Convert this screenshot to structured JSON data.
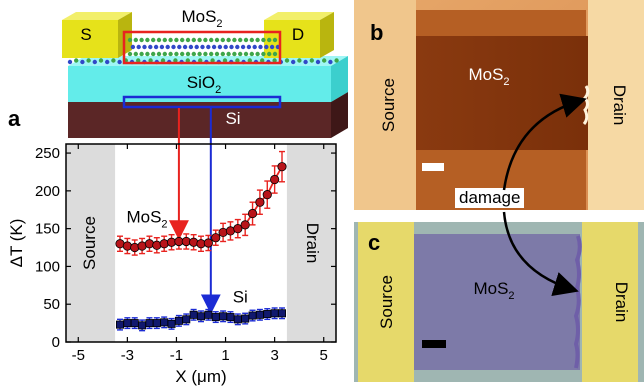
{
  "figure": {
    "panel_a_label": "a",
    "panel_b_label": "b",
    "panel_c_label": "c",
    "damage_label": "damage"
  },
  "device": {
    "source_label": "S",
    "drain_label": "D",
    "channel_label": "MoS",
    "channel_sub": "2",
    "oxide_label": "SiO",
    "oxide_sub": "2",
    "substrate_label": "Si",
    "colors": {
      "contact": "#e6e21a",
      "oxide": "#63ecea",
      "substrate": "#5b2626",
      "mos2_box": "#e8231f",
      "si_box": "#1b2bd4"
    }
  },
  "micro_b": {
    "source_label": "Source",
    "drain_label": "Drain",
    "channel_label": "MoS",
    "channel_sub": "2"
  },
  "micro_c": {
    "source_label": "Source",
    "drain_label": "Drain",
    "channel_label": "MoS",
    "channel_sub": "2"
  },
  "chart_data": {
    "type": "scatter",
    "xlabel": "X (μm)",
    "ylabel": "ΔT (K)",
    "xlim": [
      -5.5,
      5.5
    ],
    "ylim": [
      0,
      262
    ],
    "xticks": [
      -5,
      -3,
      -1,
      1,
      3,
      5
    ],
    "xticklabels": [
      "-5",
      "-3",
      "-1",
      "1",
      "3",
      "5"
    ],
    "yticks": [
      0,
      50,
      100,
      150,
      200,
      250
    ],
    "yticklabels": [
      "0",
      "50",
      "100",
      "150",
      "200",
      "250"
    ],
    "shaded_regions": [
      {
        "label": "Source",
        "x": [
          -5.5,
          -3.5
        ]
      },
      {
        "label": "Drain",
        "x": [
          3.5,
          5.5
        ]
      }
    ],
    "series": [
      {
        "name": "MoS2",
        "label_main": "MoS",
        "label_sub": "2",
        "color": "#e8231f",
        "marker": "#b8141a",
        "x": [
          -3.3,
          -3.0,
          -2.7,
          -2.4,
          -2.1,
          -1.8,
          -1.5,
          -1.2,
          -0.9,
          -0.6,
          -0.3,
          0.0,
          0.3,
          0.6,
          0.9,
          1.2,
          1.5,
          1.8,
          2.1,
          2.4,
          2.7,
          3.0,
          3.3
        ],
        "y": [
          130,
          127,
          125,
          127,
          130,
          128,
          130,
          132,
          133,
          133,
          132,
          130,
          131,
          138,
          145,
          147,
          150,
          155,
          170,
          185,
          195,
          215,
          232
        ],
        "err": [
          10,
          10,
          10,
          10,
          10,
          10,
          10,
          10,
          10,
          10,
          10,
          10,
          10,
          10,
          12,
          12,
          12,
          14,
          15,
          16,
          18,
          18,
          20
        ]
      },
      {
        "name": "Si",
        "label_main": "Si",
        "label_sub": "",
        "color": "#1b2bd4",
        "marker": "#10186e",
        "x": [
          -3.3,
          -3.0,
          -2.7,
          -2.4,
          -2.1,
          -1.8,
          -1.5,
          -1.2,
          -0.9,
          -0.6,
          -0.3,
          0.0,
          0.3,
          0.6,
          0.9,
          1.2,
          1.5,
          1.8,
          2.1,
          2.4,
          2.7,
          3.0,
          3.3
        ],
        "y": [
          23,
          25,
          25,
          22,
          25,
          25,
          26,
          24,
          28,
          30,
          36,
          34,
          36,
          33,
          34,
          33,
          30,
          31,
          35,
          36,
          37,
          38,
          38
        ],
        "err": [
          7,
          7,
          7,
          7,
          7,
          7,
          7,
          7,
          7,
          7,
          7,
          7,
          7,
          7,
          7,
          7,
          7,
          7,
          7,
          7,
          7,
          7,
          7
        ]
      }
    ]
  }
}
